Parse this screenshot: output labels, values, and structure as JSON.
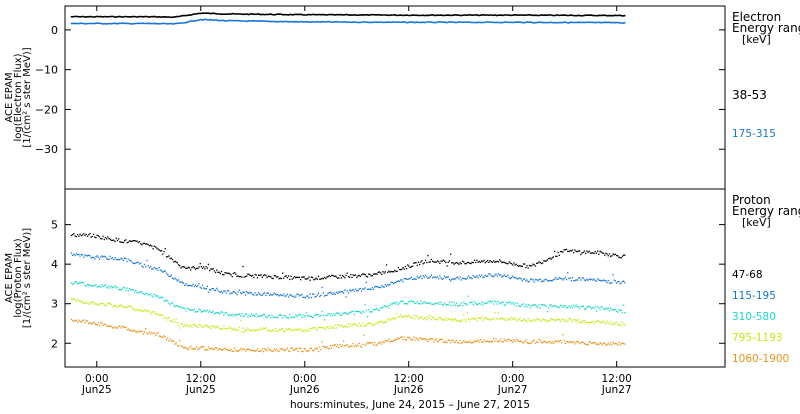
{
  "chart_data": [
    {
      "type": "line",
      "ylabel": [
        "ACE EPAM",
        "log(Electron Flux)",
        "[1/(cm² s ster MeV)]"
      ],
      "yticks": [
        0,
        -10,
        -20,
        -30
      ],
      "ylim": [
        -39.5,
        5.5
      ],
      "x": [
        "2015-06-24 21:00",
        "2015-06-25 03:00",
        "2015-06-25 06:00",
        "2015-06-25 09:00",
        "2015-06-25 10:00",
        "2015-06-25 12:00",
        "2015-06-25 15:00",
        "2015-06-26 00:00",
        "2015-06-26 12:00",
        "2015-06-27 00:00",
        "2015-06-27 13:00"
      ],
      "series": [
        {
          "name": "38-53",
          "color": "#000000",
          "values": [
            3.3,
            3.3,
            3.3,
            3.2,
            3.5,
            4.2,
            4.0,
            3.8,
            3.7,
            3.7,
            3.6
          ]
        },
        {
          "name": "175-315",
          "color": "#1a75d2",
          "values": [
            1.6,
            1.6,
            1.6,
            1.5,
            1.8,
            2.6,
            2.3,
            2.0,
            1.9,
            1.9,
            1.8
          ]
        }
      ],
      "legend": {
        "title": [
          "Electron",
          "Energy ranges",
          "[keV]"
        ],
        "placement": "right"
      }
    },
    {
      "type": "scatter",
      "ylabel": [
        "ACE EPAM",
        "log(Proton Flux)",
        "[1/(cm² s ster MeV)]"
      ],
      "yticks": [
        2,
        3,
        4,
        5
      ],
      "ylim": [
        1.45,
        5.85
      ],
      "x": [
        "2015-06-24 21:00",
        "2015-06-24 23:00",
        "2015-06-25 03:00",
        "2015-06-25 05:00",
        "2015-06-25 07:00",
        "2015-06-25 09:30",
        "2015-06-25 10:30",
        "2015-06-25 12:00",
        "2015-06-25 15:00",
        "2015-06-25 20:00",
        "2015-06-26 00:00",
        "2015-06-26 04:00",
        "2015-06-26 08:00",
        "2015-06-26 11:00",
        "2015-06-26 14:00",
        "2015-06-26 18:00",
        "2015-06-26 22:00",
        "2015-06-27 02:00",
        "2015-06-27 06:00",
        "2015-06-27 10:00",
        "2015-06-27 13:00"
      ],
      "series": [
        {
          "name": "47-68",
          "color": "#000000",
          "values": [
            4.75,
            4.75,
            4.6,
            4.55,
            4.4,
            4.0,
            3.9,
            3.95,
            3.75,
            3.7,
            3.65,
            3.7,
            3.75,
            3.9,
            4.1,
            4.05,
            4.1,
            3.95,
            4.35,
            4.3,
            4.2
          ]
        },
        {
          "name": "115-195",
          "color": "#1a75d2",
          "values": [
            4.25,
            4.2,
            4.15,
            4.0,
            3.9,
            3.6,
            3.45,
            3.45,
            3.3,
            3.25,
            3.2,
            3.3,
            3.4,
            3.6,
            3.7,
            3.65,
            3.75,
            3.6,
            3.65,
            3.6,
            3.55
          ]
        },
        {
          "name": "310-580",
          "color": "#1ad8c8",
          "values": [
            3.55,
            3.5,
            3.4,
            3.3,
            3.2,
            2.9,
            2.85,
            2.85,
            2.75,
            2.7,
            2.7,
            2.75,
            2.85,
            3.05,
            3.05,
            3.0,
            3.05,
            2.95,
            2.95,
            2.9,
            2.8
          ]
        },
        {
          "name": "795-1193",
          "color": "#c8e614",
          "values": [
            3.1,
            3.05,
            2.95,
            2.85,
            2.75,
            2.5,
            2.45,
            2.45,
            2.4,
            2.35,
            2.35,
            2.45,
            2.5,
            2.7,
            2.65,
            2.6,
            2.65,
            2.6,
            2.6,
            2.55,
            2.5
          ]
        },
        {
          "name": "1060-1900",
          "color": "#e8921a",
          "values": [
            2.6,
            2.55,
            2.4,
            2.3,
            2.25,
            1.95,
            1.9,
            1.9,
            1.85,
            1.85,
            1.85,
            1.95,
            2.0,
            2.15,
            2.1,
            2.05,
            2.1,
            2.05,
            2.05,
            2.0,
            2.0
          ]
        }
      ],
      "legend": {
        "title": [
          "Proton",
          "Energy ranges",
          "[keV]"
        ],
        "placement": "right"
      }
    }
  ],
  "x_axis": {
    "ticks": [
      {
        "time": "2015-06-25 00:00",
        "label": "0:00",
        "date": "Jun25"
      },
      {
        "time": "2015-06-25 12:00",
        "label": "12:00",
        "date": "Jun25"
      },
      {
        "time": "2015-06-26 00:00",
        "label": "0:00",
        "date": "Jun26"
      },
      {
        "time": "2015-06-26 12:00",
        "label": "12:00",
        "date": "Jun26"
      },
      {
        "time": "2015-06-27 00:00",
        "label": "0:00",
        "date": "Jun27"
      },
      {
        "time": "2015-06-27 12:00",
        "label": "12:00",
        "date": "Jun27"
      }
    ],
    "range": [
      "2015-06-24 20:20",
      "2015-06-28 00:30"
    ],
    "title": "hours:minutes, June 24, 2015 – June 27, 2015"
  }
}
